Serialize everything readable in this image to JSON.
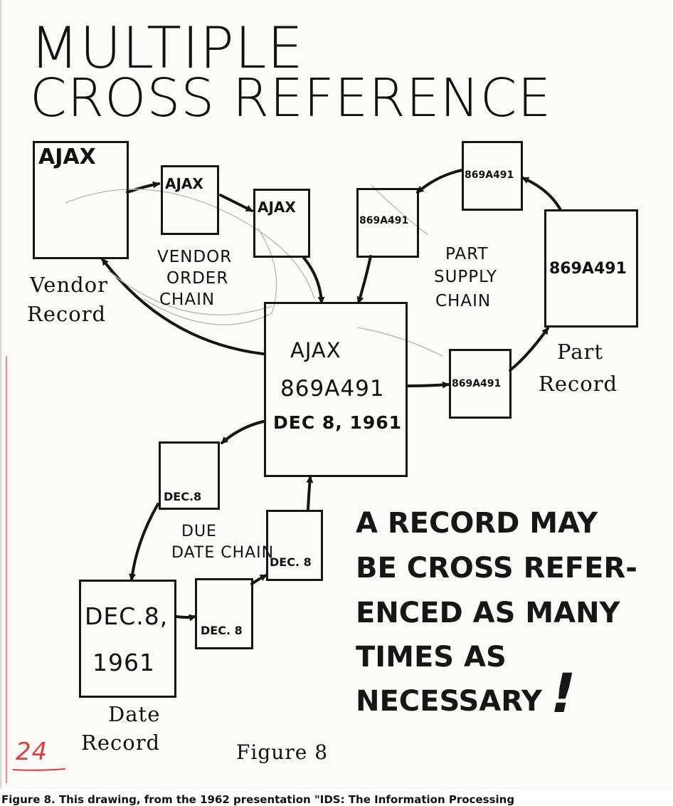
{
  "title": {
    "line1": "MULTIPLE",
    "line2": "CROSS REFERENCE"
  },
  "records": {
    "vendor": {
      "box_label": "AJAX",
      "caption1": "Vendor",
      "caption2": "Record"
    },
    "part": {
      "box_label": "869A491",
      "caption1": "Part",
      "caption2": "Record"
    },
    "date": {
      "box_label1": "DEC.8,",
      "box_label2": "1961",
      "caption1": "Date",
      "caption2": "Record"
    },
    "central": {
      "line1": "AJAX",
      "line2": "869A491",
      "line3": "DEC 8, 1961"
    }
  },
  "vendor_chain": {
    "label1": "VENDOR",
    "label2": "ORDER",
    "label3": "CHAIN",
    "box1": "AJAX",
    "box2": "AJAX"
  },
  "part_chain": {
    "label1": "PART",
    "label2": "SUPPLY",
    "label3": "CHAIN",
    "box_top": "869A491",
    "box_left": "869A491",
    "box_lower": "869A491"
  },
  "date_chain": {
    "label1": "DUE",
    "label2": "DATE CHAIN",
    "box_upper": "DEC.8",
    "box_lower": "DEC. 8",
    "box_right": "DEC. 8"
  },
  "note": {
    "line1": "A RECORD  MAY",
    "line2": "BE CROSS REFER-",
    "line3": "ENCED AS MANY",
    "line4": "TIMES AS",
    "line5": "NECESSARY",
    "mark": "!"
  },
  "figure_label": "Figure 8",
  "page_number": "24",
  "caption": "Figure 8. This drawing, from the 1962 presentation \"IDS: The Information Processing"
}
